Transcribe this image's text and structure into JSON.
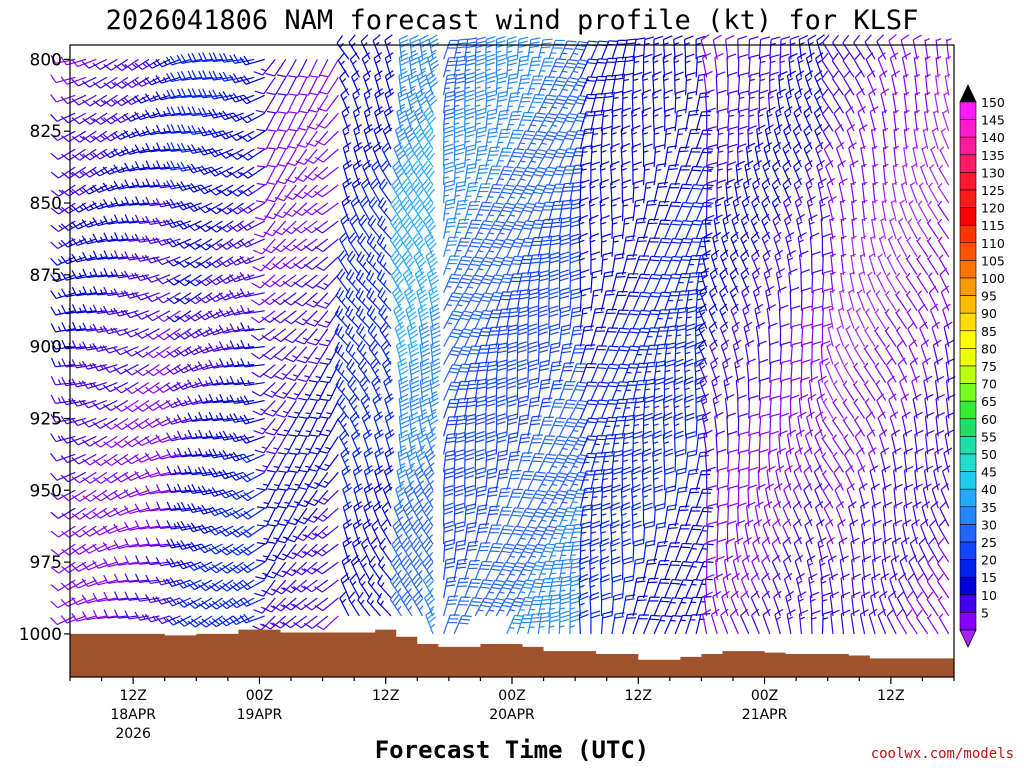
{
  "chart_data": {
    "type": "wind-barb-time-height",
    "title": "2026041806 NAM forecast wind profile (kt) for KLSF",
    "xlabel": "Forecast Time (UTC)",
    "units": "kt",
    "y_levels": [
      800,
      825,
      850,
      875,
      900,
      925,
      950,
      975,
      1000
    ],
    "x_ticks": [
      {
        "hour": 6,
        "label": "12Z",
        "sub1": "18APR",
        "sub2": "2026"
      },
      {
        "hour": 18,
        "label": "00Z",
        "sub1": "19APR",
        "sub2": ""
      },
      {
        "hour": 30,
        "label": "12Z",
        "sub1": "",
        "sub2": ""
      },
      {
        "hour": 42,
        "label": "00Z",
        "sub1": "20APR",
        "sub2": ""
      },
      {
        "hour": 54,
        "label": "12Z",
        "sub1": "",
        "sub2": ""
      },
      {
        "hour": 66,
        "label": "00Z",
        "sub1": "21APR",
        "sub2": ""
      },
      {
        "hour": 78,
        "label": "12Z",
        "sub1": "",
        "sub2": ""
      }
    ],
    "x_range_hours": [
      0,
      84
    ],
    "y_range_mb": [
      795,
      1015
    ],
    "colorbar": {
      "levels": [
        "150",
        "145",
        "140",
        "135",
        "130",
        "125",
        "120",
        "115",
        "110",
        "105",
        "100",
        "95",
        "90",
        "85",
        "80",
        "75",
        "70",
        "65",
        "60",
        "55",
        "50",
        "45",
        "40",
        "35",
        "30",
        "25",
        "20",
        "15",
        "10",
        "5"
      ],
      "colors": [
        "#ff1aff",
        "#ff19cc",
        "#ff1a99",
        "#ff1a66",
        "#ff1a33",
        "#ff1a1a",
        "#ff0000",
        "#ff3300",
        "#ff5500",
        "#ff7700",
        "#ff9900",
        "#ffbb00",
        "#ffdd00",
        "#ffff00",
        "#eeff00",
        "#bbff11",
        "#77ff22",
        "#33ee33",
        "#22dd66",
        "#22ddaa",
        "#22ddcc",
        "#22ccee",
        "#22aaff",
        "#2288ff",
        "#2266ff",
        "#1144ff",
        "#0022ee",
        "#0000dd",
        "#4400ee",
        "#8800ff"
      ],
      "top_color": "#000000",
      "bottom_color": "#aa22ff"
    },
    "terrain": [
      {
        "h": 0,
        "p": 1000
      },
      {
        "h": 9,
        "p": 1000.5
      },
      {
        "h": 12,
        "p": 1000
      },
      {
        "h": 16,
        "p": 998.5
      },
      {
        "h": 20,
        "p": 999.5
      },
      {
        "h": 24,
        "p": 999.5
      },
      {
        "h": 29,
        "p": 998.5
      },
      {
        "h": 31,
        "p": 1001
      },
      {
        "h": 33,
        "p": 1003.5
      },
      {
        "h": 35,
        "p": 1004.5
      },
      {
        "h": 39,
        "p": 1003.5
      },
      {
        "h": 43,
        "p": 1004.5
      },
      {
        "h": 45,
        "p": 1006
      },
      {
        "h": 50,
        "p": 1007
      },
      {
        "h": 54,
        "p": 1009
      },
      {
        "h": 58,
        "p": 1008
      },
      {
        "h": 60,
        "p": 1007
      },
      {
        "h": 62,
        "p": 1006
      },
      {
        "h": 66,
        "p": 1006.5
      },
      {
        "h": 68,
        "p": 1007
      },
      {
        "h": 74,
        "p": 1007.5
      },
      {
        "h": 76,
        "p": 1008.5
      },
      {
        "h": 82,
        "p": 1008.5
      },
      {
        "h": 84,
        "p": 1008
      }
    ],
    "barbs": {
      "hour_step": 1,
      "p_top": 800,
      "p_bottom": 1000,
      "p_step": 6.25,
      "regimes": [
        {
          "h0": 0,
          "h1": 11,
          "dir": 250,
          "spd": 12
        },
        {
          "h0": 11,
          "h1": 19,
          "dir": 250,
          "spd": 18
        },
        {
          "h0": 19,
          "h1": 26,
          "dir": 220,
          "spd": 12
        },
        {
          "h0": 26,
          "h1": 31,
          "dir": 330,
          "spd": 20
        },
        {
          "h0": 31,
          "h1": 35,
          "dir": 340,
          "spd": 38
        },
        {
          "h0": 35,
          "h1": 48,
          "dir": 15,
          "spd": 32
        },
        {
          "h0": 48,
          "h1": 60,
          "dir": 10,
          "spd": 20
        },
        {
          "h0": 60,
          "h1": 72,
          "dir": 350,
          "spd": 12
        },
        {
          "h0": 72,
          "h1": 85,
          "dir": 340,
          "spd": 8
        }
      ]
    }
  },
  "credit": "coolwx.com/models"
}
